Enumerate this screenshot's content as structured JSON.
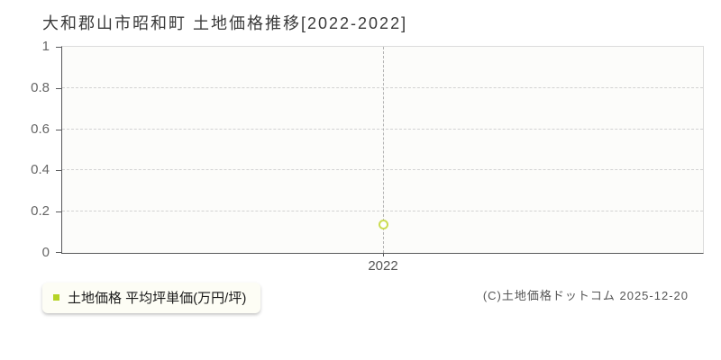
{
  "title": "大和郡山市昭和町 土地価格推移[2022-2022]",
  "legend": {
    "label": "土地価格 平均坪単価(万円/坪)",
    "marker_color": "#b5d327"
  },
  "footer": {
    "copyright": "(C)土地価格ドットコム 2025-12-20"
  },
  "colors": {
    "axis": "#58595b",
    "plot_background": "#fcfcfa",
    "h_gridline": "#d2d2d2",
    "v_gridline": "#b4b4b4",
    "point_stroke": "#cbdc51",
    "title_text": "#3a3a3a",
    "tick_text": "#666666"
  },
  "chart_data": {
    "type": "scatter",
    "title": "大和郡山市昭和町 土地価格推移[2022-2022]",
    "categories": [
      "2022"
    ],
    "series": [
      {
        "name": "土地価格 平均坪単価(万円/坪)",
        "values": [
          0.14
        ]
      }
    ],
    "xlabel": "",
    "ylabel": "",
    "ylim": [
      0,
      1
    ],
    "yticks": [
      0,
      0.2,
      0.4,
      0.6,
      0.8,
      1
    ],
    "ytick_labels": [
      "0",
      "0.2",
      "0.4",
      "0.6",
      "0.8",
      "1"
    ],
    "grid": "horizontal dashed gridlines at interior yticks; vertical dashed gridline at each category",
    "marker": "open-circle",
    "legend_position": "bottom-left",
    "legend_entries": [
      "土地価格 平均坪単価(万円/坪)"
    ]
  }
}
